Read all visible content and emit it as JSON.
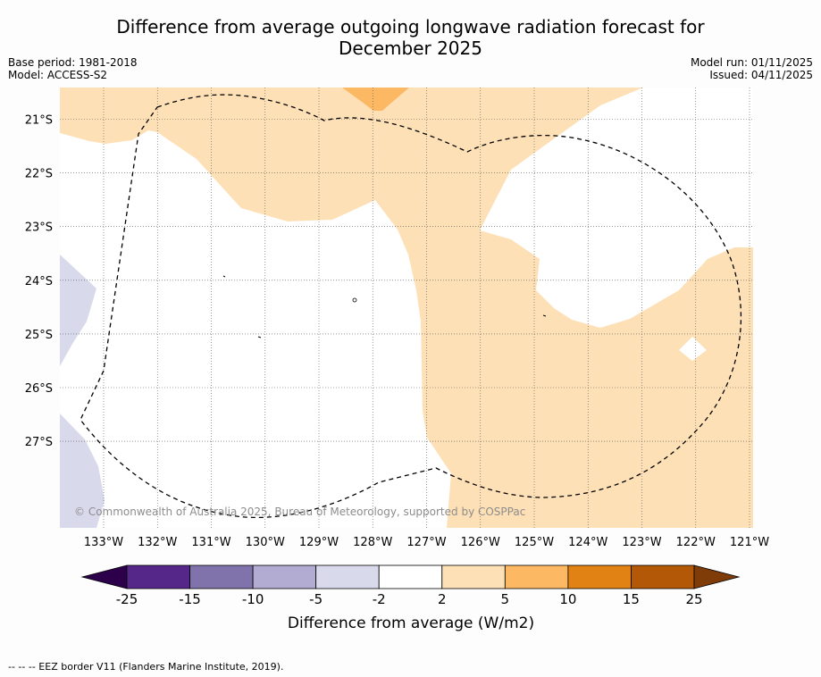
{
  "title_line1": "Difference from average outgoing longwave radiation forecast for",
  "title_line2": "December 2025",
  "base_period": "Base period: 1981-2018",
  "model": "Model: ACCESS-S2",
  "model_run": "Model run: 01/11/2025",
  "issued": "Issued: 04/11/2025",
  "copyright": "© Commonwealth of Australia 2025, Bureau of Meteorology, supported by COSPPac",
  "footnote": "-- -- -- EEZ border V11 (Flanders Marine Institute, 2019).",
  "lat_labels": [
    "21°S",
    "22°S",
    "23°S",
    "24°S",
    "25°S",
    "26°S",
    "27°S"
  ],
  "lon_labels": [
    "133°W",
    "132°W",
    "131°W",
    "130°W",
    "129°W",
    "128°W",
    "127°W",
    "126°W",
    "125°W",
    "124°W",
    "123°W",
    "122°W",
    "121°W"
  ],
  "colorbar": {
    "label": "Difference from average (W/m2)",
    "ticks": [
      "-25",
      "-15",
      "-10",
      "-5",
      "-2",
      "2",
      "5",
      "10",
      "15",
      "25"
    ],
    "colors": [
      "#2d004b",
      "#542788",
      "#8073ac",
      "#b2abd2",
      "#d8daeb",
      "#ffffff",
      "#fee0b6",
      "#fdb863",
      "#e08214",
      "#b35806",
      "#7f3b08"
    ]
  },
  "map_colors": {
    "light_orange": "#fee0b6",
    "orange": "#fdb863",
    "light_purple": "#d8daeb"
  }
}
